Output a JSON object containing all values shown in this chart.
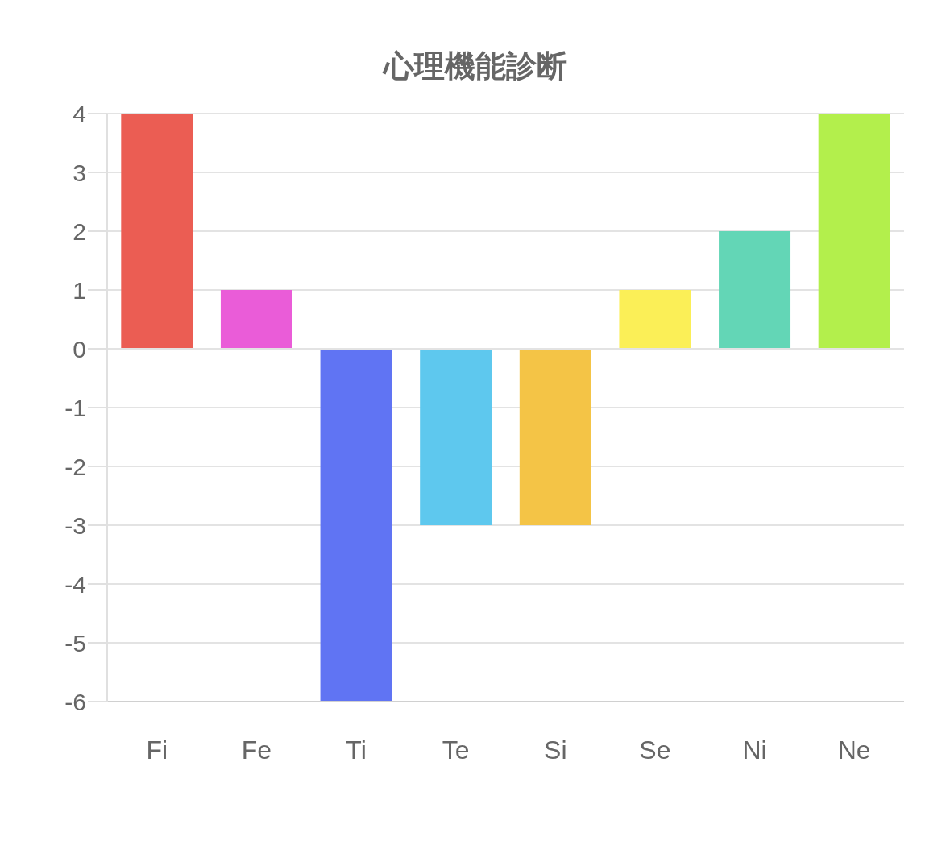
{
  "chart_data": {
    "type": "bar",
    "title": "心理機能診断",
    "categories": [
      "Fi",
      "Fe",
      "Ti",
      "Te",
      "Si",
      "Se",
      "Ni",
      "Ne"
    ],
    "values": [
      4,
      1,
      -6,
      -3,
      -3,
      1,
      2,
      4
    ],
    "colors": [
      "#eb5d53",
      "#ea5cd8",
      "#6074f3",
      "#5ec8ee",
      "#f4c446",
      "#fbef57",
      "#63d6b6",
      "#b3ef4c"
    ],
    "ylim": [
      -6,
      4
    ],
    "yticks": [
      -6,
      -5,
      -4,
      -3,
      -2,
      -1,
      0,
      1,
      2,
      3,
      4
    ],
    "grid": "y",
    "legend": false
  }
}
